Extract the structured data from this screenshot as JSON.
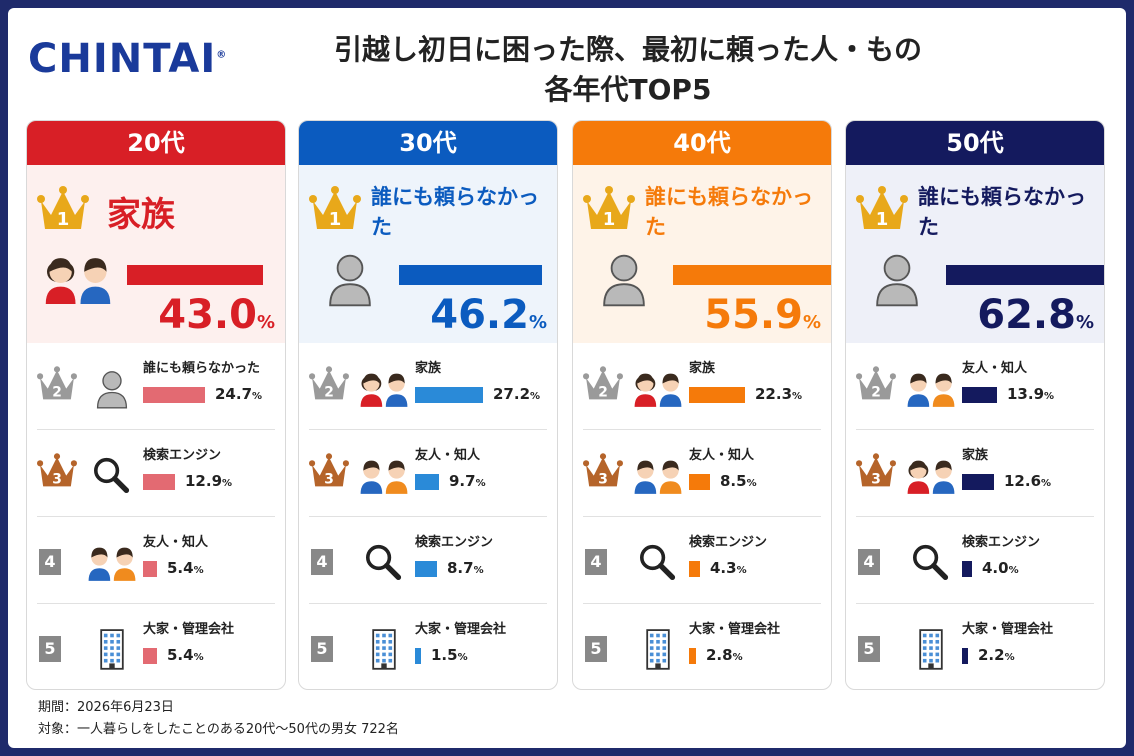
{
  "brand": {
    "logo": "CHINTAI",
    "logo_mark": "®"
  },
  "title_line1": "引越し初日に困った際、最初に頼った人・もの",
  "title_line2": "各年代TOP5",
  "colors": {
    "frame": "#1f2a6b",
    "gold": "#e8a81a",
    "silver": "#9a9a9a",
    "bronze": "#b5642a"
  },
  "chart_data": {
    "type": "bar",
    "title": "引越し初日に困った際、最初に頼った人・もの 各年代TOP5",
    "unit": "%",
    "panels": [
      {
        "group": "20代",
        "color": "#d81f26",
        "bar_color": "#e36a72",
        "bg": "#fdf0ee",
        "items": [
          {
            "rank": "1",
            "label": "家族",
            "value": 43.0,
            "value_text": "43.0",
            "icon": "family-icon"
          },
          {
            "rank": "2",
            "label": "誰にも頼らなかった",
            "value": 24.7,
            "value_text": "24.7",
            "icon": "person-icon"
          },
          {
            "rank": "3",
            "label": "検索エンジン",
            "value": 12.9,
            "value_text": "12.9",
            "icon": "search-icon"
          },
          {
            "rank": "4",
            "label": "友人・知人",
            "value": 5.4,
            "value_text": "5.4",
            "icon": "friends-icon"
          },
          {
            "rank": "5",
            "label": "大家・管理会社",
            "value": 5.4,
            "value_text": "5.4",
            "icon": "building-icon"
          }
        ]
      },
      {
        "group": "30代",
        "color": "#0b5bbf",
        "bar_color": "#2a8ad8",
        "bg": "#eef4fb",
        "items": [
          {
            "rank": "1",
            "label": "誰にも頼らなかった",
            "value": 46.2,
            "value_text": "46.2",
            "icon": "person-icon"
          },
          {
            "rank": "2",
            "label": "家族",
            "value": 27.2,
            "value_text": "27.2",
            "icon": "family-icon"
          },
          {
            "rank": "3",
            "label": "友人・知人",
            "value": 9.7,
            "value_text": "9.7",
            "icon": "friends-icon"
          },
          {
            "rank": "4",
            "label": "検索エンジン",
            "value": 8.7,
            "value_text": "8.7",
            "icon": "search-icon"
          },
          {
            "rank": "5",
            "label": "大家・管理会社",
            "value": 1.5,
            "value_text": "1.5",
            "icon": "building-icon"
          }
        ]
      },
      {
        "group": "40代",
        "color": "#f57a0a",
        "bar_color": "#f57a0a",
        "bg": "#fef3e8",
        "items": [
          {
            "rank": "1",
            "label": "誰にも頼らなかった",
            "value": 55.9,
            "value_text": "55.9",
            "icon": "person-icon"
          },
          {
            "rank": "2",
            "label": "家族",
            "value": 22.3,
            "value_text": "22.3",
            "icon": "family-icon"
          },
          {
            "rank": "3",
            "label": "友人・知人",
            "value": 8.5,
            "value_text": "8.5",
            "icon": "friends-icon"
          },
          {
            "rank": "4",
            "label": "検索エンジン",
            "value": 4.3,
            "value_text": "4.3",
            "icon": "search-icon"
          },
          {
            "rank": "5",
            "label": "大家・管理会社",
            "value": 2.8,
            "value_text": "2.8",
            "icon": "building-icon"
          }
        ]
      },
      {
        "group": "50代",
        "color": "#141a5e",
        "bar_color": "#141a5e",
        "bg": "#eef0f8",
        "items": [
          {
            "rank": "1",
            "label": "誰にも頼らなかった",
            "value": 62.8,
            "value_text": "62.8",
            "icon": "person-icon"
          },
          {
            "rank": "2",
            "label": "友人・知人",
            "value": 13.9,
            "value_text": "13.9",
            "icon": "friends-icon"
          },
          {
            "rank": "3",
            "label": "家族",
            "value": 12.6,
            "value_text": "12.6",
            "icon": "family-icon"
          },
          {
            "rank": "4",
            "label": "検索エンジン",
            "value": 4.0,
            "value_text": "4.0",
            "icon": "search-icon"
          },
          {
            "rank": "5",
            "label": "大家・管理会社",
            "value": 2.2,
            "value_text": "2.2",
            "icon": "building-icon"
          }
        ]
      }
    ]
  },
  "footer": {
    "period": "期間：2026年6月23日",
    "target": "対象：一人暮らしをしたことのある20代〜50代の男女 722名"
  }
}
